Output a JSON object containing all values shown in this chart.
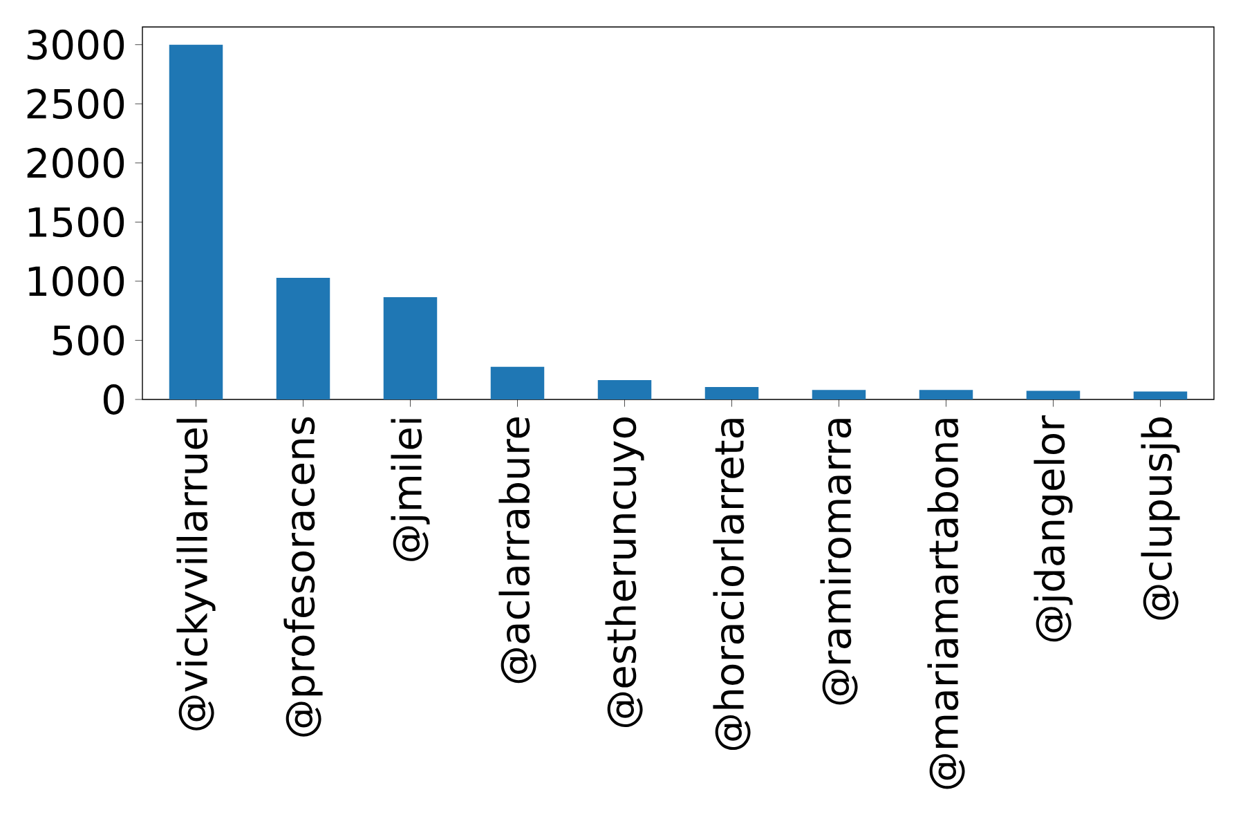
{
  "chart_data": {
    "type": "bar",
    "categories": [
      "@vickyvillarruel",
      "@profesoracens",
      "@jmilei",
      "@aclarrabure",
      "@estheruncuyo",
      "@horaciorlarreta",
      "@ramiromarra",
      "@mariamartabona",
      "@jdangelor",
      "@clupusjb"
    ],
    "values": [
      3000,
      1028,
      865,
      276,
      163,
      105,
      80,
      80,
      73,
      67
    ],
    "color": "#1f77b4",
    "ylim": [
      0,
      3150
    ],
    "yticks": [
      0,
      500,
      1000,
      1500,
      2000,
      2500,
      3000
    ]
  }
}
